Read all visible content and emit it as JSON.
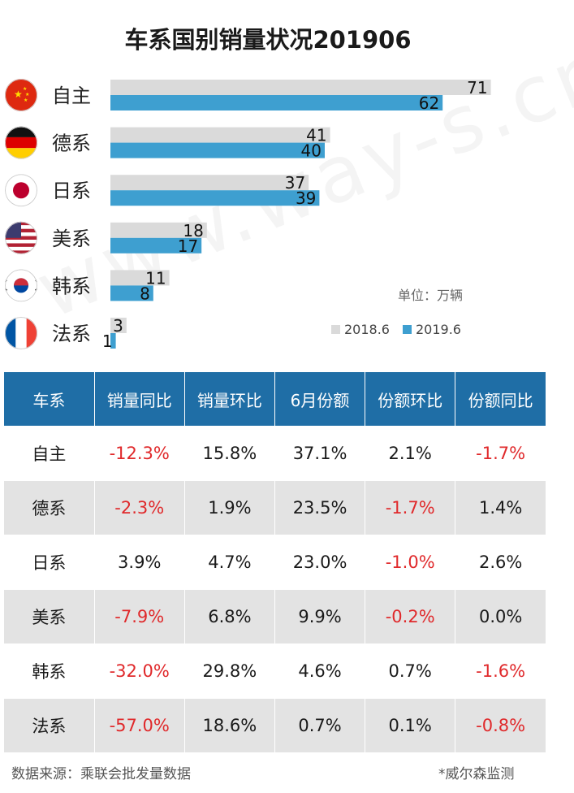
{
  "title": "车系国别销量状况201906",
  "unit_label": "单位：万辆",
  "chart_data": {
    "type": "bar",
    "orientation": "horizontal",
    "title": "车系国别销量状况201906",
    "ylabel": "单位：万辆",
    "categories": [
      "自主",
      "德系",
      "日系",
      "美系",
      "韩系",
      "法系"
    ],
    "series": [
      {
        "name": "2018.6",
        "color": "#dadada",
        "values": [
          71,
          41,
          37,
          18,
          11,
          3
        ]
      },
      {
        "name": "2019.6",
        "color": "#3e9fd0",
        "values": [
          62,
          40,
          39,
          17,
          8,
          1
        ]
      }
    ],
    "flags": [
      "china-flag-icon",
      "germany-flag-icon",
      "japan-flag-icon",
      "usa-flag-icon",
      "korea-flag-icon",
      "france-flag-icon"
    ],
    "legend_position": "bottom-right",
    "grid": false
  },
  "table": {
    "headers": [
      "车系",
      "销量同比",
      "销量环比",
      "6月份额",
      "份额环比",
      "份额同比"
    ],
    "rows": [
      [
        "自主",
        "-12.3%",
        "15.8%",
        "37.1%",
        "2.1%",
        "-1.7%"
      ],
      [
        "德系",
        "-2.3%",
        "1.9%",
        "23.5%",
        "-1.7%",
        "1.4%"
      ],
      [
        "日系",
        "3.9%",
        "4.7%",
        "23.0%",
        "-1.0%",
        "2.6%"
      ],
      [
        "美系",
        "-7.9%",
        "6.8%",
        "9.9%",
        "-0.2%",
        "0.0%"
      ],
      [
        "韩系",
        "-32.0%",
        "29.8%",
        "4.6%",
        "0.7%",
        "-1.6%"
      ],
      [
        "法系",
        "-57.0%",
        "18.6%",
        "0.7%",
        "0.1%",
        "-0.8%"
      ]
    ],
    "header_color": "#1f6ea6",
    "negative_color": "#e0292b",
    "shade_color": "#e3e3e3"
  },
  "footer": {
    "source": "数据来源：乘联会批发量数据",
    "credit": "*威尔森监测"
  },
  "watermark": "www.way-s.cn"
}
